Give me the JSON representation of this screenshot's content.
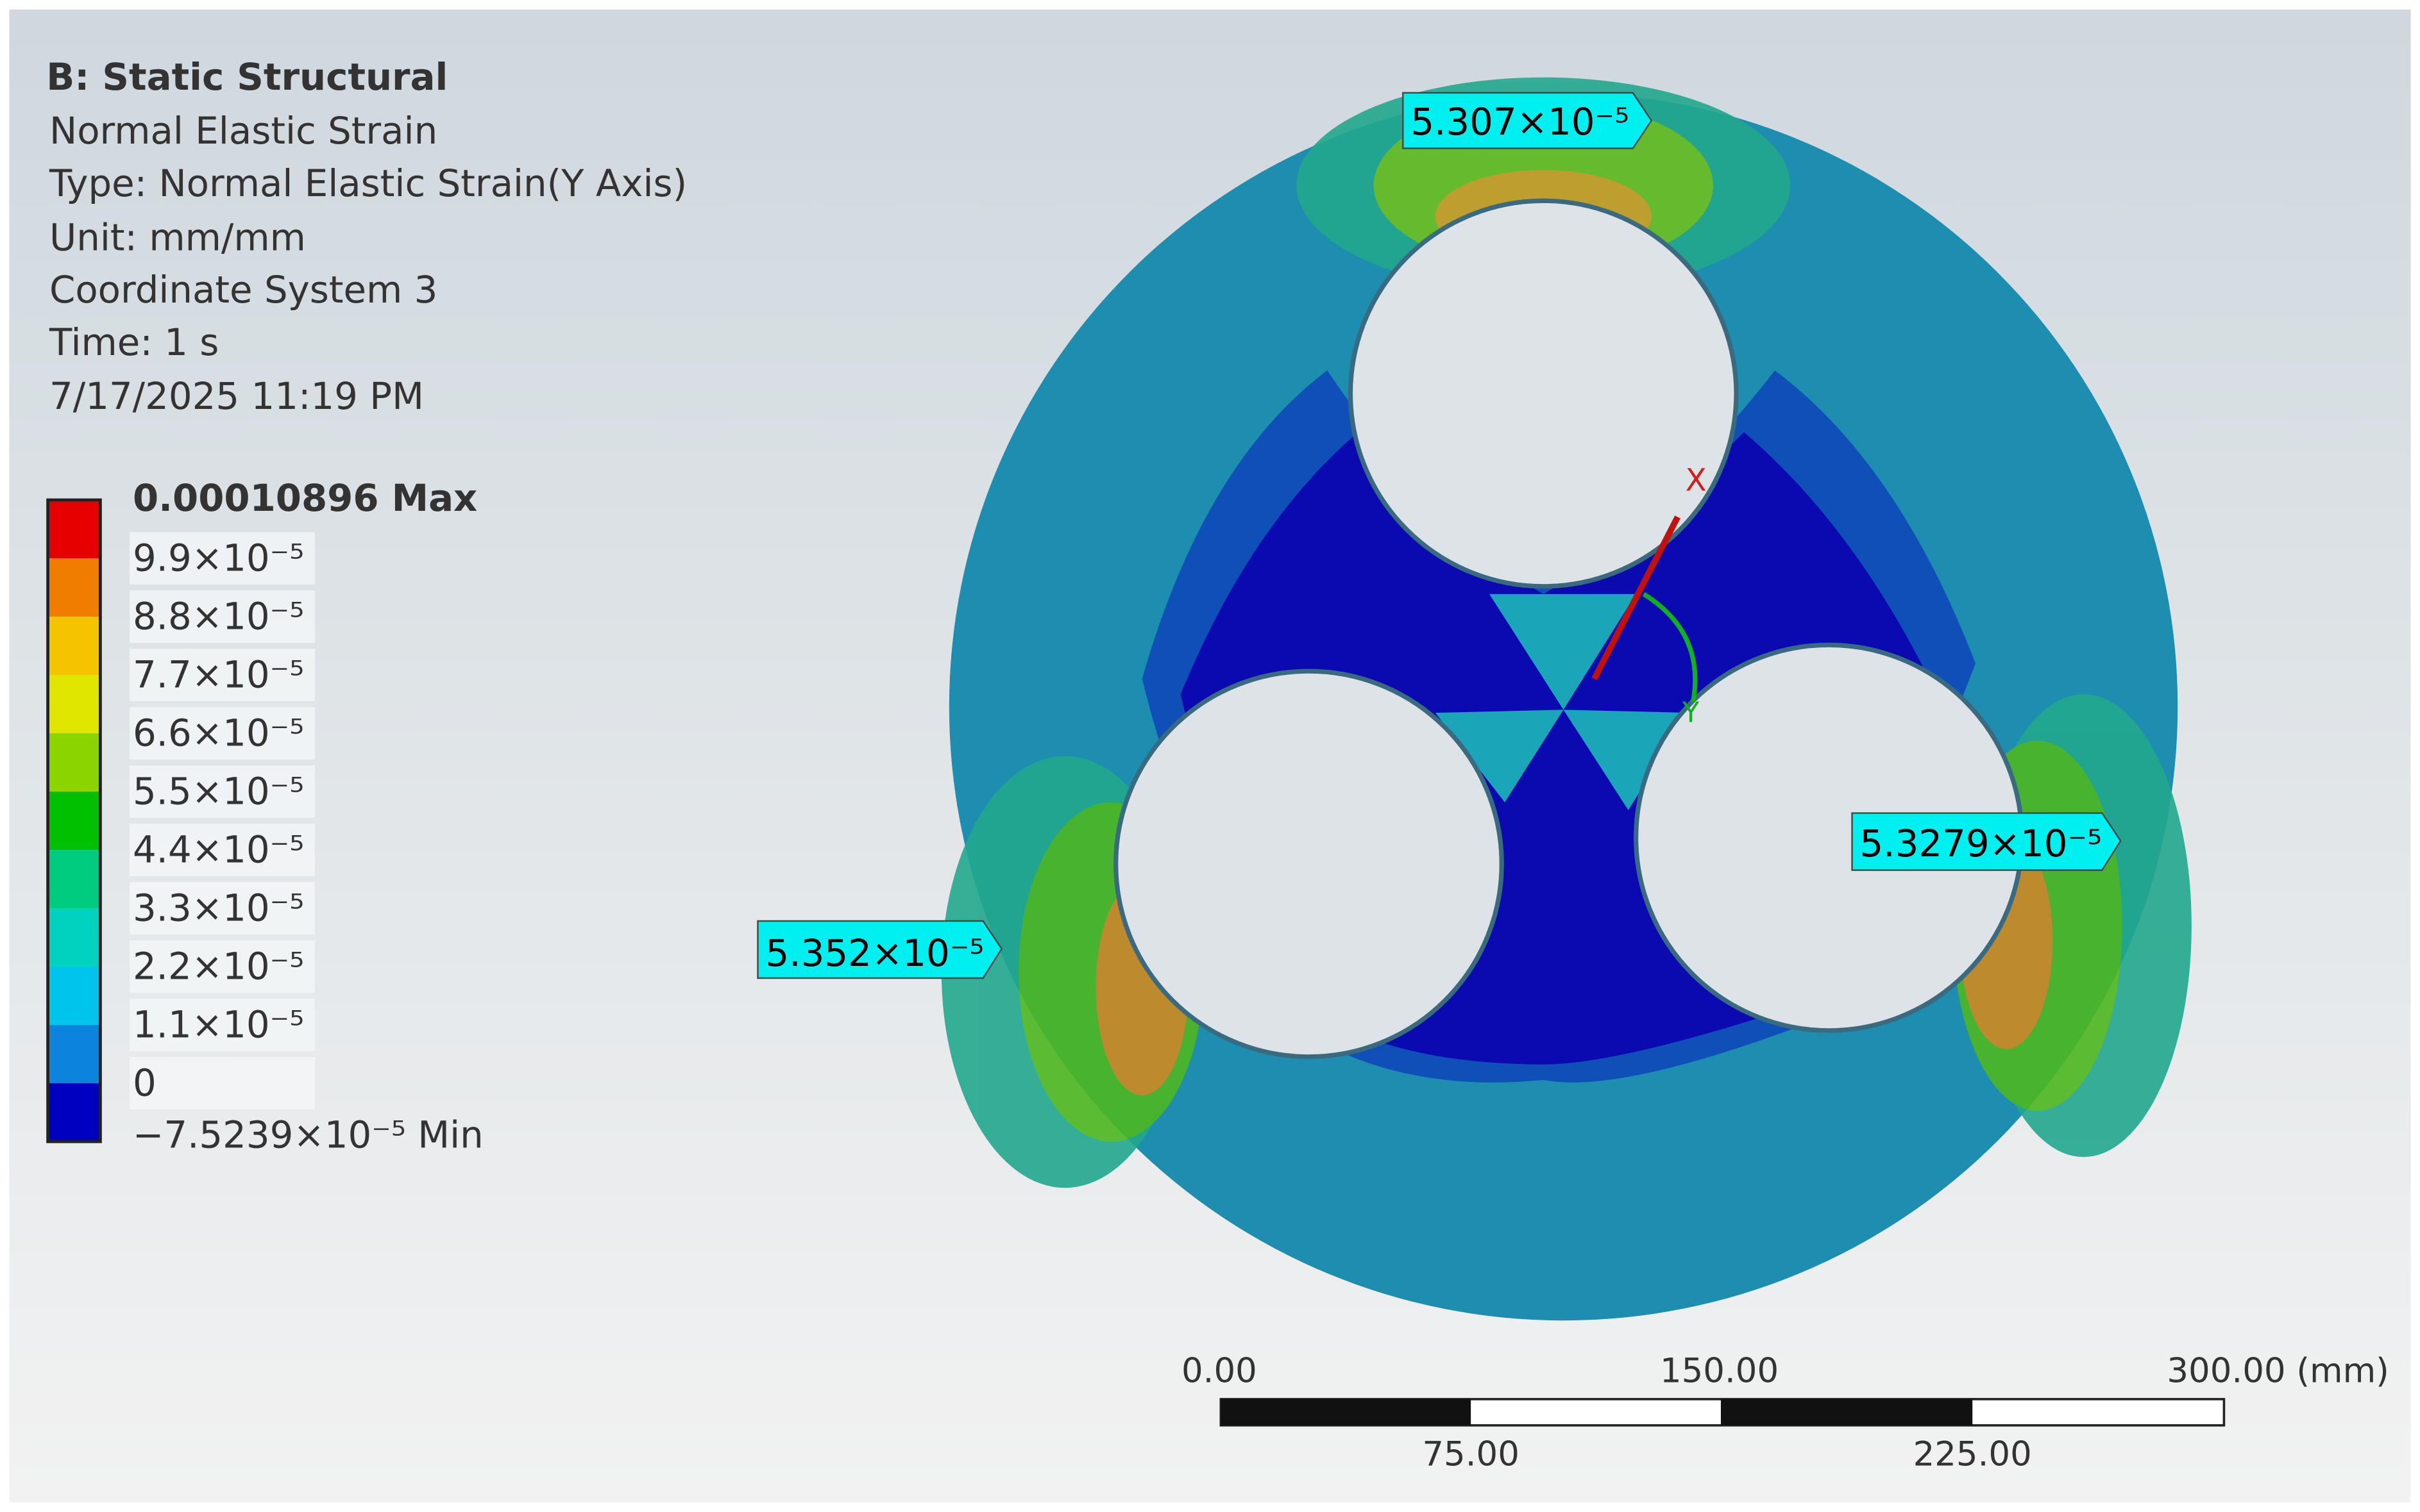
{
  "header": {
    "title": "B: Static Structural",
    "lines": [
      "Normal Elastic Strain",
      "Type: Normal Elastic Strain(Y Axis)",
      "Unit: mm/mm",
      "Coordinate System 3",
      "Time: 1 s",
      "7/17/2025 11:19 PM"
    ]
  },
  "legend": {
    "max": "0.00010896 Max",
    "levels": [
      "9.9×10⁻⁵",
      "8.8×10⁻⁵",
      "7.7×10⁻⁵",
      "6.6×10⁻⁵",
      "5.5×10⁻⁵",
      "4.4×10⁻⁵",
      "3.3×10⁻⁵",
      "2.2×10⁻⁵",
      "1.1×10⁻⁵",
      "0"
    ],
    "min": "−7.5239×10⁻⁵ Min",
    "colors": [
      "#e60000",
      "#f07c00",
      "#f5c400",
      "#e0e600",
      "#8cd400",
      "#00c000",
      "#00cc80",
      "#00d2c0",
      "#00c4ec",
      "#0a84dc",
      "#0000c0"
    ]
  },
  "probes": [
    "5.307×10⁻⁵",
    "5.3279×10⁻⁵",
    "5.352×10⁻⁵"
  ],
  "triad": {
    "x": "X",
    "y": "Y"
  },
  "scale_bar": {
    "top": [
      "0.00",
      "150.00",
      "300.00 (mm)"
    ],
    "bottom": [
      "75.00",
      "225.00"
    ]
  }
}
